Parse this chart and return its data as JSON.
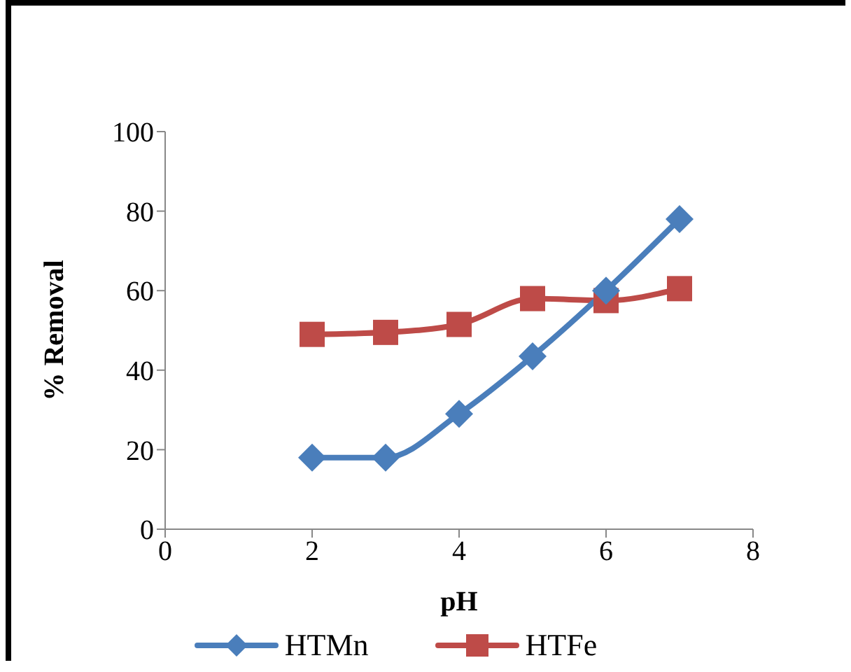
{
  "chart_data": {
    "type": "line",
    "xlabel": "pH",
    "ylabel": "% Removal",
    "x": [
      2,
      3,
      4,
      5,
      6,
      7
    ],
    "series": [
      {
        "name": "HTMn",
        "color": "#4a7ebb",
        "marker": "diamond",
        "values": [
          18,
          18,
          29,
          43.5,
          60,
          78
        ]
      },
      {
        "name": "HTFe",
        "color": "#be4b48",
        "marker": "square",
        "values": [
          49,
          49.5,
          51.5,
          58,
          57.5,
          60.5
        ]
      }
    ],
    "xlim": [
      0,
      8
    ],
    "xticks": [
      0,
      2,
      4,
      6,
      8
    ],
    "ylim": [
      0,
      100
    ],
    "yticks": [
      0,
      20,
      40,
      60,
      80,
      100
    ],
    "grid": false,
    "legend": "bottom",
    "line_style": "solid"
  }
}
